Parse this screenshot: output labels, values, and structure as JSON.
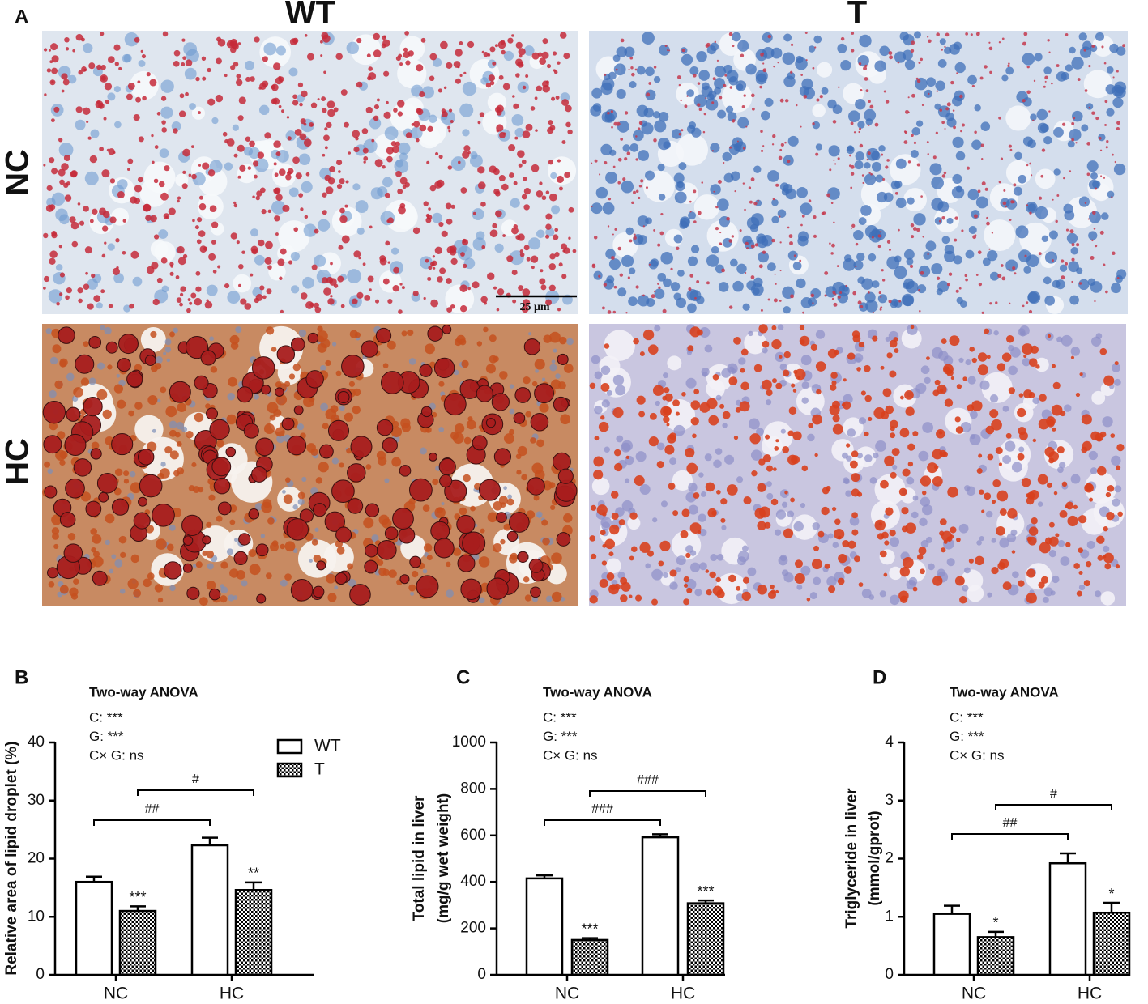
{
  "panel_a": {
    "label": "A",
    "columns": [
      "WT",
      "T"
    ],
    "rows": [
      "NC",
      "HC"
    ],
    "scale_bar": "25 μm"
  },
  "chart_data": [
    {
      "type": "bar",
      "label": "B",
      "title": "Two-way ANOVA",
      "stats": [
        "C: ***",
        "G: ***",
        "C× G:  ns"
      ],
      "ylabel": [
        "Relative area of lipid droplet (%)"
      ],
      "categories": [
        "NC",
        "HC"
      ],
      "ylim": [
        0,
        40
      ],
      "yticks": [
        0,
        10,
        20,
        30,
        40
      ],
      "legend": "upper-right",
      "series": [
        {
          "name": "WT",
          "color": "#ffffff",
          "values": [
            16,
            22.3
          ],
          "errors": [
            0.9,
            1.3
          ]
        },
        {
          "name": "T",
          "color": "#000000",
          "pattern": "checker",
          "values": [
            11,
            14.6
          ],
          "errors": [
            0.8,
            1.3
          ],
          "significance": [
            "***",
            "**"
          ]
        }
      ],
      "comparisons": [
        "##",
        "#"
      ]
    },
    {
      "type": "bar",
      "label": "C",
      "title": "Two-way ANOVA",
      "stats": [
        "C: ***",
        "G: ***",
        "C× G:  ns"
      ],
      "ylabel": [
        "Total lipid in liver",
        "(mg/g wet weight)"
      ],
      "categories": [
        "NC",
        "HC"
      ],
      "ylim": [
        0,
        1000
      ],
      "yticks": [
        0,
        200,
        400,
        600,
        800,
        1000
      ],
      "series": [
        {
          "name": "WT",
          "color": "#ffffff",
          "values": [
            415,
            592
          ],
          "errors": [
            13,
            13
          ]
        },
        {
          "name": "T",
          "color": "#000000",
          "pattern": "checker",
          "values": [
            150,
            308
          ],
          "errors": [
            8,
            12
          ],
          "significance": [
            "***",
            "***"
          ]
        }
      ],
      "comparisons": [
        "###",
        "###"
      ]
    },
    {
      "type": "bar",
      "label": "D",
      "title": "Two-way ANOVA",
      "stats": [
        "C: ***",
        "G: ***",
        "C× G:  ns"
      ],
      "ylabel": [
        "Triglyceride in liver",
        "(mmol/gprot)"
      ],
      "categories": [
        "NC",
        "HC"
      ],
      "ylim": [
        0,
        4
      ],
      "yticks": [
        0,
        1,
        2,
        3,
        4
      ],
      "series": [
        {
          "name": "WT",
          "color": "#ffffff",
          "values": [
            1.05,
            1.92
          ],
          "errors": [
            0.14,
            0.17
          ]
        },
        {
          "name": "T",
          "color": "#000000",
          "pattern": "checker",
          "values": [
            0.65,
            1.07
          ],
          "errors": [
            0.09,
            0.17
          ],
          "significance": [
            "*",
            "*"
          ]
        }
      ],
      "comparisons": [
        "##",
        "#"
      ]
    }
  ]
}
